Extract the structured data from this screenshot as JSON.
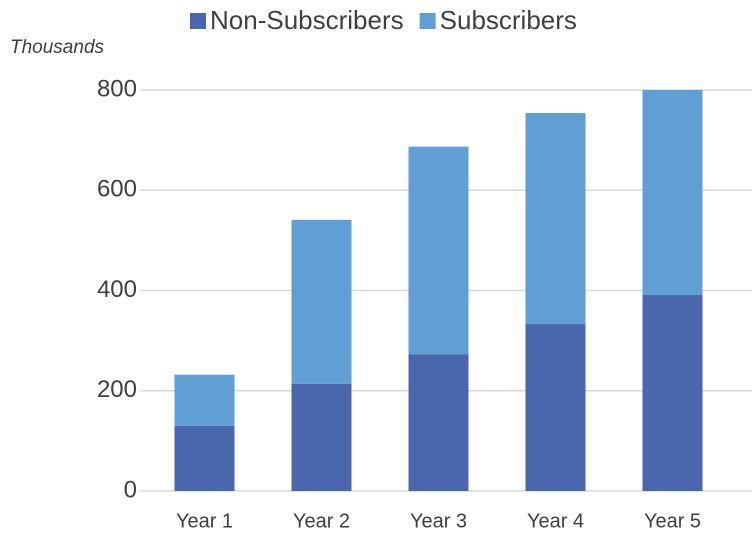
{
  "chart_data": {
    "type": "stacked_bar",
    "y_unit_label": "Thousands",
    "categories": [
      "Year 1",
      "Year 2",
      "Year 3",
      "Year 4",
      "Year 5"
    ],
    "series": [
      {
        "name": "Non-Subscribers",
        "color": "#4a66ac",
        "values": [
          130,
          214,
          273,
          333,
          391
        ]
      },
      {
        "name": "Subscribers",
        "color": "#5f9fd3",
        "values": [
          102,
          327,
          414,
          421,
          409
        ]
      }
    ],
    "ylim": [
      0,
      800
    ],
    "yticks": [
      0,
      200,
      400,
      600,
      800
    ],
    "grid": true,
    "legend": "top"
  }
}
